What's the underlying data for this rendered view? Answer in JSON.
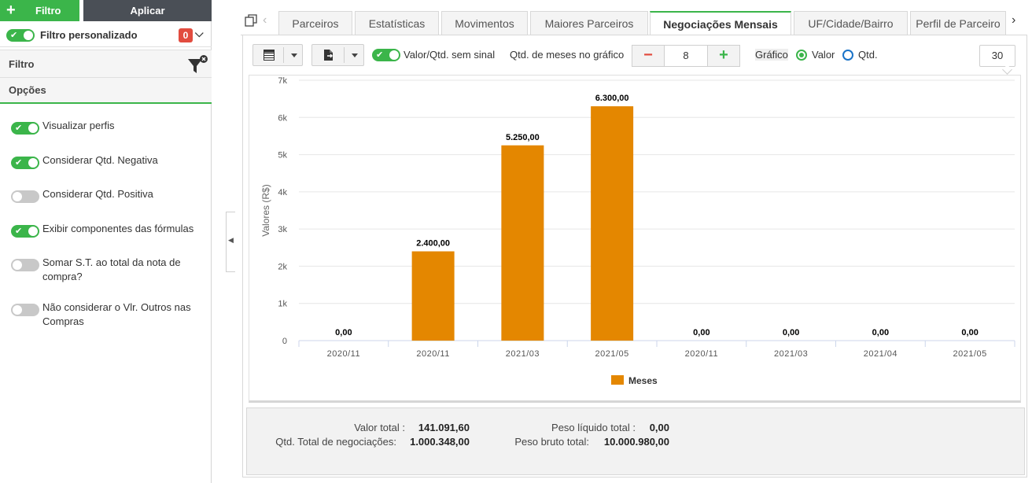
{
  "left_panel": {
    "filter_button_label": "Filtro",
    "apply_button_label": "Aplicar",
    "custom_filter_label": "Filtro personalizado",
    "custom_filter_count": "0",
    "filter_section_title": "Filtro",
    "options_section_title": "Opções",
    "options": [
      {
        "label": "Visualizar perfis",
        "on": true
      },
      {
        "label": "Considerar Qtd. Negativa",
        "on": true
      },
      {
        "label": "Considerar Qtd. Positiva",
        "on": false
      },
      {
        "label": "Exibir componentes das fórmulas",
        "on": true
      },
      {
        "label": "Somar S.T. ao total da nota de compra?",
        "on": false
      },
      {
        "label": "Não considerar o Vlr. Outros nas Compras",
        "on": false
      }
    ]
  },
  "tabs": [
    {
      "label": "Parceiros",
      "active": false
    },
    {
      "label": "Estatísticas",
      "active": false
    },
    {
      "label": "Movimentos",
      "active": false
    },
    {
      "label": "Maiores Parceiros",
      "active": false
    },
    {
      "label": "Negociações Mensais",
      "active": true
    },
    {
      "label": "UF/Cidade/Bairro",
      "active": false
    },
    {
      "label": "Perfil de Parceiro",
      "active": false
    }
  ],
  "toolbar": {
    "unsigned_toggle_label": "Valor/Qtd. sem sinal",
    "months_label": "Qtd. de meses no gráfico",
    "months_value": "8",
    "chart_label": "Gráfico",
    "radio_valor_label": "Valor",
    "radio_qtd_label": "Qtd.",
    "selected_radio": "Valor",
    "page_size": "30"
  },
  "chart_data": {
    "type": "bar",
    "categories": [
      "2020/11",
      "2020/11",
      "2021/03",
      "2021/05",
      "2020/11",
      "2021/03",
      "2021/04",
      "2021/05"
    ],
    "series": [
      {
        "name": "Meses",
        "values": [
          0,
          2400,
          5250,
          6300,
          0,
          0,
          0,
          0
        ],
        "color": "#e48700"
      }
    ],
    "data_labels": [
      "0,00",
      "2.400,00",
      "5.250,00",
      "6.300,00",
      "0,00",
      "0,00",
      "0,00",
      "0,00"
    ],
    "ylabel": "Valores (R$)",
    "ylim": [
      0,
      7000
    ],
    "yticks": [
      0,
      1000,
      2000,
      3000,
      4000,
      5000,
      6000,
      7000
    ],
    "ytick_labels": [
      "0",
      "1k",
      "2k",
      "3k",
      "4k",
      "5k",
      "6k",
      "7k"
    ],
    "grid": true,
    "legend": "bottom-center"
  },
  "summary": {
    "valor_total_label": "Valor total :",
    "valor_total": "141.091,60",
    "qtd_total_label": "Qtd. Total de negociações:",
    "qtd_total": "1.000.348,00",
    "peso_liquido_label": "Peso líquido total :",
    "peso_liquido": "0,00",
    "peso_bruto_label": "Peso bruto total:",
    "peso_bruto": "10.000.980,00"
  },
  "colors": {
    "accent_green": "#3bb54a",
    "bar_orange": "#e48700",
    "dark_button": "#4a4f56",
    "badge_red": "#e24c3f"
  }
}
